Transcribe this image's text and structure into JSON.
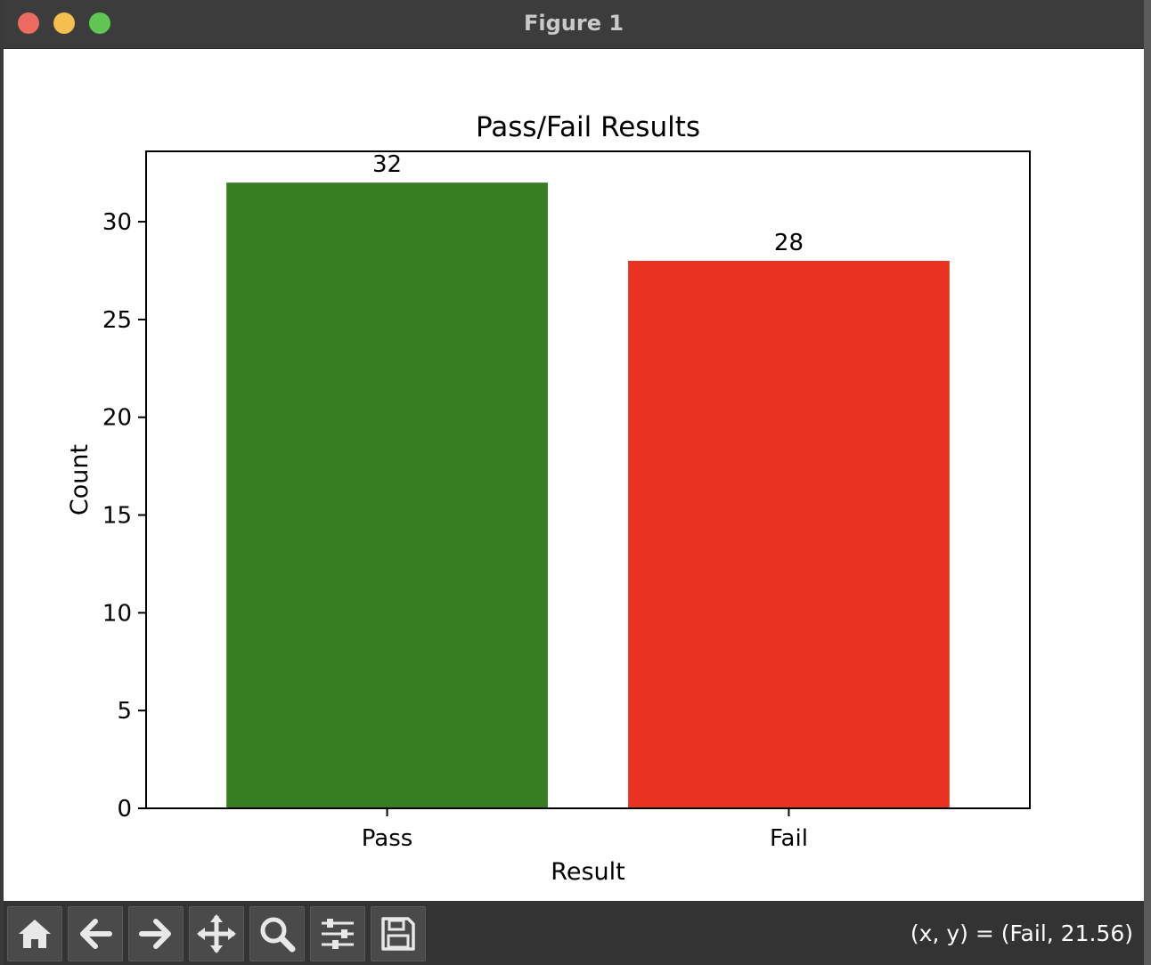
{
  "window": {
    "title": "Figure 1"
  },
  "toolbar": {
    "buttons": [
      {
        "name": "home-button",
        "icon": "home-icon"
      },
      {
        "name": "back-button",
        "icon": "arrow-left-icon"
      },
      {
        "name": "forward-button",
        "icon": "arrow-right-icon"
      },
      {
        "name": "pan-button",
        "icon": "move-icon"
      },
      {
        "name": "zoom-button",
        "icon": "search-icon"
      },
      {
        "name": "configure-subplots-button",
        "icon": "sliders-icon"
      },
      {
        "name": "save-button",
        "icon": "save-icon"
      }
    ],
    "coords": "(x, y) = (Fail, 21.56)"
  },
  "chart_data": {
    "type": "bar",
    "title": "Pass/Fail Results",
    "xlabel": "Result",
    "ylabel": "Count",
    "categories": [
      "Pass",
      "Fail"
    ],
    "values": [
      32,
      28
    ],
    "data_labels": [
      "32",
      "28"
    ],
    "colors": [
      "#377d22",
      "#e83323"
    ],
    "ylim": [
      0,
      33.6
    ],
    "yticks": [
      0,
      5,
      10,
      15,
      20,
      25,
      30
    ],
    "grid": false
  }
}
